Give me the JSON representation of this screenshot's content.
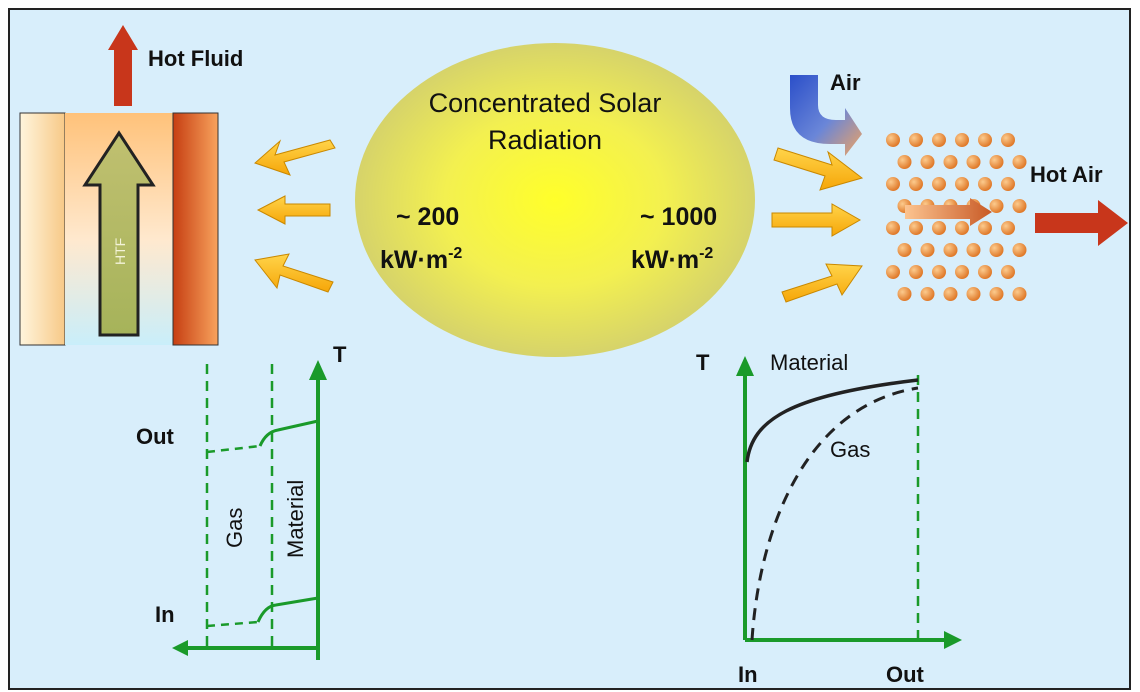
{
  "labels": {
    "hot_fluid": "Hot Fluid",
    "air": "Air",
    "hot_air": "Hot Air",
    "sun_line1": "Concentrated Solar",
    "sun_line2": "Radiation",
    "left_flux_value": "~ 200",
    "right_flux_value": "~ 1000",
    "flux_unit": "kW·m",
    "flux_exp": "-2",
    "htf": "HTF"
  },
  "left_plot": {
    "y_axis": "T",
    "out_label": "Out",
    "in_label": "In",
    "gas_label": "Gas",
    "material_label": "Material"
  },
  "right_plot": {
    "y_axis": "T",
    "material_label": "Material",
    "gas_label": "Gas",
    "in_label": "In",
    "out_label": "Out"
  },
  "colors": {
    "background": "#d9eefa",
    "sun_center": "#ffff33",
    "sun_edge": "#d8d870",
    "arrow_yellow": "#fdb913",
    "arrow_hot": "#c9341a",
    "plot_green": "#1a9a2a",
    "particle": "#f09a4a"
  }
}
